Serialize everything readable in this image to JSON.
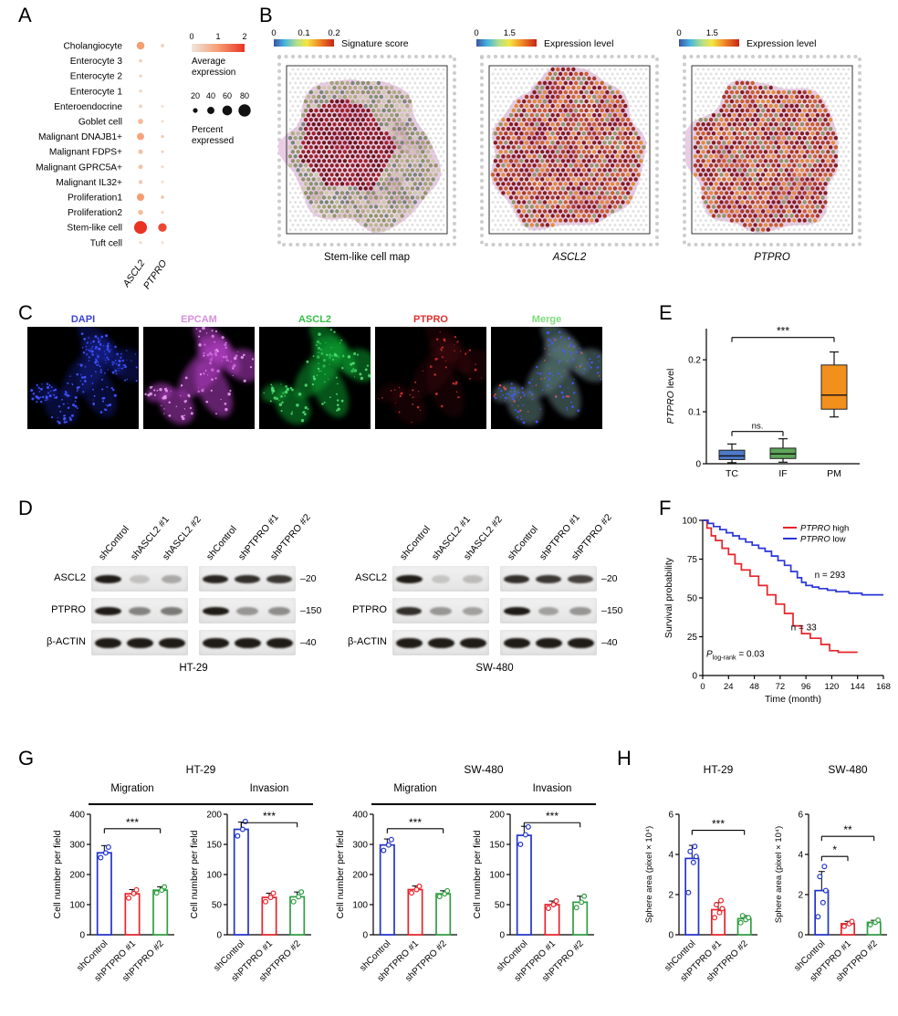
{
  "panel_letters": {
    "A": "A",
    "B": "B",
    "C": "C",
    "D": "D",
    "E": "E",
    "F": "F",
    "G": "G",
    "H": "H"
  },
  "panelA": {
    "legend": {
      "avg_line1": "Average",
      "avg_line2": "expression",
      "pct_line1": "Percent",
      "pct_line2": "expressed"
    }
  },
  "panelB": {
    "maps": [
      {
        "ticks": [
          "0",
          "0.1",
          "0.2"
        ],
        "bar_label": "Signature score",
        "caption": "Stem-like cell map",
        "caption_italic": false,
        "kind": "signature"
      },
      {
        "ticks": [
          "0",
          "1.5"
        ],
        "bar_label": "Expression level",
        "caption": "ASCL2",
        "caption_italic": true,
        "kind": "expression"
      },
      {
        "ticks": [
          "0",
          "1.5"
        ],
        "bar_label": "Expression level",
        "caption": "PTPRO",
        "caption_italic": true,
        "kind": "expression"
      }
    ]
  },
  "panelC": {
    "channels": [
      {
        "label": "DAPI",
        "color": "#3c43e0",
        "kind": "dapi"
      },
      {
        "label": "EPCAM",
        "color": "#d78fe0",
        "kind": "epcam"
      },
      {
        "label": "ASCL2",
        "color": "#35c24a",
        "kind": "ascl2"
      },
      {
        "label": "PTPRO",
        "color": "#e03030",
        "kind": "ptpro"
      },
      {
        "label": "Merge",
        "color": "#7ddc7d",
        "kind": "merge"
      }
    ]
  },
  "panelD": {
    "groups": [
      {
        "cell_line": "HT-29",
        "lanesA": [
          "shControl",
          "shASCL2 #1",
          "shASCL2 #2"
        ],
        "lanesB": [
          "shControl",
          "shPTPRO #1",
          "shPTPRO #2"
        ],
        "rows": [
          {
            "label": "ASCL2",
            "marker": "–20",
            "A": [
              1.0,
              0.12,
              0.25
            ],
            "B": [
              0.95,
              0.9,
              0.85
            ]
          },
          {
            "label": "PTPRO",
            "marker": "–150",
            "A": [
              1.0,
              0.45,
              0.5
            ],
            "B": [
              1.0,
              0.35,
              0.4
            ]
          },
          {
            "label": "β-ACTIN",
            "marker": "–40",
            "A": [
              1,
              1,
              1
            ],
            "B": [
              1,
              1,
              1
            ]
          }
        ]
      },
      {
        "cell_line": "SW-480",
        "lanesA": [
          "shControl",
          "shASCL2 #1",
          "shASCL2 #2"
        ],
        "lanesB": [
          "shControl",
          "shPTPRO #1",
          "shPTPRO #2"
        ],
        "rows": [
          {
            "label": "ASCL2",
            "marker": "–20",
            "A": [
              1.0,
              0.1,
              0.15
            ],
            "B": [
              0.9,
              0.85,
              0.8
            ]
          },
          {
            "label": "PTPRO",
            "marker": "–150",
            "A": [
              0.9,
              0.35,
              0.3
            ],
            "B": [
              1.0,
              0.3,
              0.35
            ]
          },
          {
            "label": "β-ACTIN",
            "marker": "–40",
            "A": [
              1,
              1,
              1
            ],
            "B": [
              1,
              1,
              1
            ]
          }
        ]
      }
    ]
  },
  "panelG": {
    "groups": [
      {
        "title": "HT-29",
        "assays": [
          "Migration",
          "Invasion"
        ]
      },
      {
        "title": "SW-480",
        "assays": [
          "Migration",
          "Invasion"
        ]
      }
    ]
  },
  "panelH": {
    "titles": [
      "HT-29",
      "SW-480"
    ]
  },
  "chart_data": [
    {
      "id": "A_dotplot",
      "type": "scatter",
      "subtype": "dot-plot",
      "x_categories": [
        "ASCL2",
        "PTPRO"
      ],
      "y_categories": [
        "Cholangiocyte",
        "Enterocyte 3",
        "Enterocyte 2",
        "Enterocyte 1",
        "Enteroendocrine",
        "Goblet cell",
        "Malignant DNAJB1+",
        "Malignant FDPS+",
        "Malignant GPRC5A+",
        "Malignant IL32+",
        "Proliferation1",
        "Proliferation2",
        "Stem-like cell",
        "Tuft cell"
      ],
      "series": [
        {
          "gene": "ASCL2",
          "percent_expressed": [
            45,
            10,
            8,
            8,
            10,
            25,
            40,
            20,
            18,
            15,
            42,
            22,
            85,
            6
          ],
          "average_expression": [
            1.0,
            0.3,
            0.2,
            0.2,
            0.3,
            0.6,
            0.9,
            0.5,
            0.5,
            0.4,
            1.0,
            0.6,
            2.0,
            0.2
          ]
        },
        {
          "gene": "PTPRO",
          "percent_expressed": [
            10,
            0,
            0,
            0,
            4,
            4,
            8,
            6,
            6,
            4,
            10,
            6,
            50,
            3
          ],
          "average_expression": [
            0.3,
            0,
            0,
            0,
            0.1,
            0.1,
            0.3,
            0.2,
            0.2,
            0.1,
            0.4,
            0.2,
            1.8,
            0.1
          ]
        }
      ],
      "color_scale": {
        "ticks": [
          "0",
          "1",
          "2"
        ],
        "low": "#f0e6dc",
        "mid": "#f59e72",
        "high": "#e93323"
      },
      "size_scale": [
        20,
        40,
        60,
        80
      ]
    },
    {
      "id": "E_box",
      "type": "box",
      "ylabel_parts": [
        {
          "t": "PTPRO",
          "i": true
        },
        {
          "t": " level"
        }
      ],
      "categories": [
        "TC",
        "IF",
        "PM"
      ],
      "ylim": [
        0,
        0.26
      ],
      "yticks": [
        0,
        0.1,
        0.2
      ],
      "boxes": [
        {
          "group": "TC",
          "color": "#4d79c7",
          "whisker_low": 0.002,
          "q1": 0.008,
          "median": 0.015,
          "q3": 0.026,
          "whisker_high": 0.038
        },
        {
          "group": "IF",
          "color": "#5da55a",
          "whisker_low": 0.003,
          "q1": 0.01,
          "median": 0.019,
          "q3": 0.03,
          "whisker_high": 0.048
        },
        {
          "group": "PM",
          "color": "#f2901e",
          "whisker_low": 0.09,
          "q1": 0.105,
          "median": 0.132,
          "q3": 0.19,
          "whisker_high": 0.215
        }
      ],
      "sigs": [
        {
          "label": "ns.",
          "from": 0,
          "to": 1,
          "y": 0.062
        },
        {
          "label": "***",
          "from": 0,
          "to": 2,
          "y": 0.243
        }
      ]
    },
    {
      "id": "F_km",
      "type": "line",
      "subtype": "kaplan-meier",
      "xlabel": "Time (month)",
      "ylabel": "Survival probability",
      "xlim": [
        0,
        168
      ],
      "xticks": [
        0,
        24,
        48,
        72,
        96,
        120,
        144,
        168
      ],
      "ylim": [
        0,
        100
      ],
      "yticks": [
        0,
        25,
        50,
        75,
        100
      ],
      "series": [
        {
          "name_parts": [
            {
              "t": "PTPRO",
              "i": true
            },
            {
              "t": " high"
            }
          ],
          "color": "#e8232a",
          "points": [
            [
              0,
              100
            ],
            [
              4,
              95
            ],
            [
              8,
              90
            ],
            [
              12,
              87
            ],
            [
              18,
              82
            ],
            [
              24,
              78
            ],
            [
              30,
              72
            ],
            [
              36,
              68
            ],
            [
              44,
              64
            ],
            [
              52,
              58
            ],
            [
              60,
              52
            ],
            [
              68,
              46
            ],
            [
              76,
              40
            ],
            [
              84,
              32
            ],
            [
              92,
              27
            ],
            [
              100,
              24
            ],
            [
              110,
              20
            ],
            [
              118,
              16
            ],
            [
              126,
              15
            ],
            [
              144,
              15
            ]
          ]
        },
        {
          "name_parts": [
            {
              "t": "PTPRO",
              "i": true
            },
            {
              "t": " low"
            }
          ],
          "color": "#2a35d8",
          "points": [
            [
              0,
              100
            ],
            [
              5,
              98
            ],
            [
              10,
              96
            ],
            [
              16,
              94
            ],
            [
              22,
              92
            ],
            [
              28,
              90
            ],
            [
              34,
              88
            ],
            [
              40,
              86
            ],
            [
              46,
              84
            ],
            [
              52,
              82
            ],
            [
              58,
              80
            ],
            [
              64,
              77
            ],
            [
              70,
              74
            ],
            [
              76,
              71
            ],
            [
              82,
              67
            ],
            [
              88,
              63
            ],
            [
              92,
              60
            ],
            [
              96,
              58
            ],
            [
              102,
              57
            ],
            [
              108,
              56
            ],
            [
              116,
              55
            ],
            [
              124,
              54
            ],
            [
              136,
              53
            ],
            [
              148,
              52
            ],
            [
              160,
              52
            ],
            [
              168,
              52
            ]
          ]
        }
      ],
      "annotations": [
        {
          "text": "n = 293",
          "x": 104,
          "y": 63
        },
        {
          "text": "n = 33",
          "x": 82,
          "y": 29
        }
      ],
      "p_parts": [
        {
          "t": "P",
          "i": true
        },
        {
          "t": "log-rank",
          "sub": true
        },
        {
          "t": " = 0.03"
        }
      ]
    },
    {
      "id": "G1",
      "type": "bar",
      "cell_line": "HT-29",
      "assay": "Migration",
      "ylabel": "Cell number per field",
      "ylim": [
        0,
        400
      ],
      "yticks": [
        0,
        100,
        200,
        300,
        400
      ],
      "categories": [
        "shControl",
        "shPTPRO #1",
        "shPTPRO #2"
      ],
      "colors": [
        "#2233cc",
        "#e8232a",
        "#2f9e41"
      ],
      "values": [
        272,
        136,
        148
      ],
      "errors": [
        24,
        14,
        11
      ],
      "points": [
        [
          256,
          272,
          291
        ],
        [
          122,
          137,
          149
        ],
        [
          139,
          148,
          159
        ]
      ],
      "sigs": [
        {
          "label": "***",
          "from": 0,
          "to": 2,
          "y": 352
        }
      ]
    },
    {
      "id": "G2",
      "type": "bar",
      "cell_line": "HT-29",
      "assay": "Invasion",
      "ylabel": "Cell number per field",
      "ylim": [
        0,
        200
      ],
      "yticks": [
        0,
        50,
        100,
        150,
        200
      ],
      "categories": [
        "shControl",
        "shPTPRO #1",
        "shPTPRO #2"
      ],
      "colors": [
        "#2233cc",
        "#e8232a",
        "#2f9e41"
      ],
      "values": [
        175,
        62,
        63
      ],
      "errors": [
        12,
        7,
        8
      ],
      "points": [
        [
          164,
          175,
          188
        ],
        [
          55,
          62,
          69
        ],
        [
          55,
          63,
          71
        ]
      ],
      "sigs": [
        {
          "label": "***",
          "from": 0,
          "to": 2,
          "y": 186
        }
      ]
    },
    {
      "id": "G3",
      "type": "bar",
      "cell_line": "SW-480",
      "assay": "Migration",
      "ylabel": "Cell number per field",
      "ylim": [
        0,
        400
      ],
      "yticks": [
        0,
        100,
        200,
        300,
        400
      ],
      "categories": [
        "shControl",
        "shPTPRO #1",
        "shPTPRO #2"
      ],
      "colors": [
        "#2233cc",
        "#e8232a",
        "#2f9e41"
      ],
      "values": [
        298,
        150,
        136
      ],
      "errors": [
        20,
        12,
        10
      ],
      "points": [
        [
          280,
          298,
          316
        ],
        [
          139,
          150,
          161
        ],
        [
          127,
          136,
          146
        ]
      ],
      "sigs": [
        {
          "label": "***",
          "from": 0,
          "to": 2,
          "y": 352
        }
      ]
    },
    {
      "id": "G4",
      "type": "bar",
      "cell_line": "SW-480",
      "assay": "Invasion",
      "ylabel": "Cell number per field",
      "ylim": [
        0,
        200
      ],
      "yticks": [
        0,
        50,
        100,
        150,
        200
      ],
      "categories": [
        "shControl",
        "shPTPRO #1",
        "shPTPRO #2"
      ],
      "colors": [
        "#2233cc",
        "#e8232a",
        "#2f9e41"
      ],
      "values": [
        165,
        50,
        54
      ],
      "errors": [
        15,
        6,
        10
      ],
      "points": [
        [
          150,
          166,
          179
        ],
        [
          44,
          50,
          56
        ],
        [
          45,
          54,
          64
        ]
      ],
      "sigs": [
        {
          "label": "***",
          "from": 0,
          "to": 2,
          "y": 186
        }
      ]
    },
    {
      "id": "H1",
      "type": "bar",
      "cell_line": "HT-29",
      "ylabel": "Sphere area (pixel × 10⁴)",
      "ylim": [
        0,
        6
      ],
      "yticks": [
        0,
        2,
        4,
        6
      ],
      "categories": [
        "shControl",
        "shPTPRO #1",
        "shPTPRO #2"
      ],
      "colors": [
        "#2233cc",
        "#e8232a",
        "#2f9e41"
      ],
      "values": [
        3.8,
        1.25,
        0.8
      ],
      "errors": [
        0.65,
        0.35,
        0.15
      ],
      "points": [
        [
          2.1,
          3.6,
          3.9,
          4.15,
          4.4
        ],
        [
          0.85,
          1.1,
          1.3,
          1.5,
          1.7
        ],
        [
          0.6,
          0.75,
          0.85,
          0.95
        ]
      ],
      "sigs": [
        {
          "label": "***",
          "from": 0,
          "to": 2,
          "y": 5.2
        }
      ]
    },
    {
      "id": "H2",
      "type": "bar",
      "cell_line": "SW-480",
      "ylabel": "Sphere area (pixel × 10⁴)",
      "ylim": [
        0,
        6
      ],
      "yticks": [
        0,
        2,
        4,
        6
      ],
      "categories": [
        "shControl",
        "shPTPRO #1",
        "shPTPRO #2"
      ],
      "colors": [
        "#2233cc",
        "#e8232a",
        "#2f9e41"
      ],
      "values": [
        2.2,
        0.55,
        0.62
      ],
      "errors": [
        0.95,
        0.12,
        0.1
      ],
      "points": [
        [
          0.9,
          1.6,
          2.2,
          2.9,
          3.4
        ],
        [
          0.42,
          0.55,
          0.66
        ],
        [
          0.5,
          0.62,
          0.73
        ]
      ],
      "sigs": [
        {
          "label": "*",
          "from": 0,
          "to": 1,
          "y": 3.9
        },
        {
          "label": "**",
          "from": 0,
          "to": 2,
          "y": 4.9
        }
      ]
    }
  ]
}
